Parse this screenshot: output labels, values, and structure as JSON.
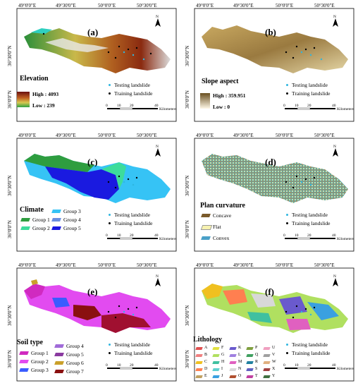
{
  "coords": {
    "lon": [
      "49°0'0\"E",
      "49°30'0\"E",
      "50°0'0\"E",
      "50°30'0\"E"
    ],
    "lat": [
      "36°30'0\"N",
      "36°0'0\"N"
    ]
  },
  "scalebar": {
    "ticks": [
      "0",
      "10",
      "20",
      "40"
    ],
    "unit": "Kilometers"
  },
  "north": "N",
  "points": {
    "testing": "Testing landslide",
    "training": "Training landslide"
  },
  "panels": {
    "a": {
      "label": "(a)",
      "title": "Elevation",
      "high": "High : 4093",
      "low": "Low : 239"
    },
    "b": {
      "label": "(b)",
      "title": "Slope aspect",
      "high": "High : 359.951",
      "low": "Low : 0"
    },
    "c": {
      "label": "(c)",
      "title": "Climate",
      "groups": [
        "Group 1",
        "Group 2",
        "Group 3",
        "Group 4",
        "Group 5"
      ]
    },
    "d": {
      "label": "(d)",
      "title": "Plan curvature",
      "classes": [
        "Concave",
        "Flat",
        "Convex"
      ]
    },
    "e": {
      "label": "(e)",
      "title": "Soil type",
      "groups": [
        "Group 1",
        "Group 2",
        "Group 3",
        "Group 4",
        "Group 5",
        "Group 6",
        "Group 7"
      ]
    },
    "f": {
      "label": "(f)",
      "title": "Lithology",
      "classes": [
        "A",
        "B",
        "C",
        "D",
        "E",
        "F",
        "G",
        "H",
        "I",
        "J",
        "K",
        "L",
        "M",
        "N",
        "O",
        "P",
        "Q",
        "R",
        "S",
        "T",
        "U",
        "V",
        "W",
        "X",
        "Y"
      ]
    }
  },
  "colors": {
    "frame": "#000000",
    "climate": [
      "#2e9d3f",
      "#3ddc9b",
      "#36c3f5",
      "#6a8fe0",
      "#1a1ae0"
    ],
    "curvature": [
      "#7a5a2a",
      "#f7f2b0",
      "#4aa0c8"
    ],
    "soil": [
      "#d02ac0",
      "#e24bf0",
      "#3a5cff",
      "#a06bd8",
      "#8a3aa0",
      "#caa02a",
      "#8a1010"
    ],
    "testing": "#2fb6e0",
    "training": "#000000"
  }
}
